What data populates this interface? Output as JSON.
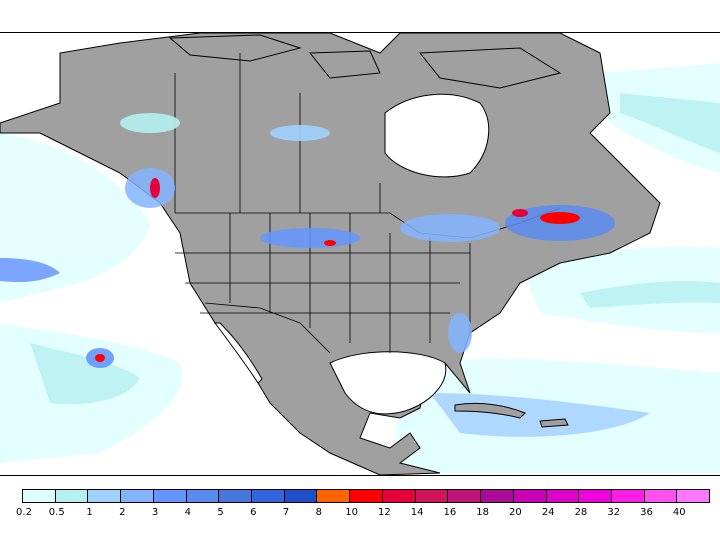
{
  "legend": {
    "labels": [
      "0.2",
      "0.5",
      "1",
      "2",
      "3",
      "4",
      "5",
      "6",
      "7",
      "8",
      "10",
      "12",
      "14",
      "16",
      "18",
      "20",
      "24",
      "28",
      "32",
      "36",
      "40"
    ],
    "colors": [
      "#e0ffff",
      "#b4f0f0",
      "#a0d2ff",
      "#82b4ff",
      "#6496ff",
      "#5a8cf0",
      "#4678dc",
      "#3264dc",
      "#1e50c8",
      "#ff6400",
      "#ff0000",
      "#e6003c",
      "#d2145a",
      "#be1478",
      "#aa0a96",
      "#c800b4",
      "#dc00c8",
      "#f000dc",
      "#ff1ee6",
      "#ff50f0",
      "#ff78ff"
    ]
  },
  "map": {
    "land_color": "#a0a0a0",
    "ocean_color": "#ffffff",
    "border_color": "#000000"
  }
}
